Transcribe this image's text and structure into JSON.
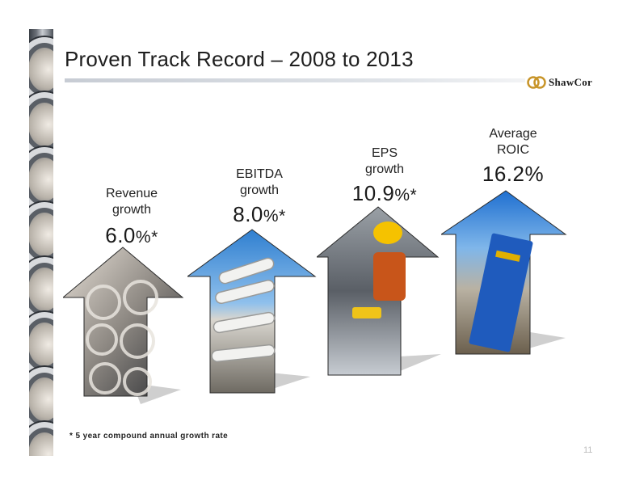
{
  "slide": {
    "title": "Proven Track Record – 2008 to 2013",
    "logo_text": "ShawCor",
    "page_number": "11"
  },
  "metrics": [
    {
      "label_line1": "Revenue",
      "label_line2": "growth",
      "value": "6.0",
      "unit": "%",
      "marker": "*"
    },
    {
      "label_line1": "EBITDA",
      "label_line2": "growth",
      "value": "8.0",
      "unit": "%",
      "marker": "*"
    },
    {
      "label_line1": "EPS",
      "label_line2": "growth",
      "value": "10.9",
      "unit": "%",
      "marker": "*"
    },
    {
      "label_line1": "Average",
      "label_line2": "ROIC",
      "value": "16.2%",
      "unit": "",
      "marker": ""
    }
  ],
  "footnote": "*  5 year compound annual growth rate",
  "colors": {
    "rule": "#d2d6dc",
    "arrow_shadow": "#c9c9c9",
    "sky": "#3f8ed8"
  }
}
